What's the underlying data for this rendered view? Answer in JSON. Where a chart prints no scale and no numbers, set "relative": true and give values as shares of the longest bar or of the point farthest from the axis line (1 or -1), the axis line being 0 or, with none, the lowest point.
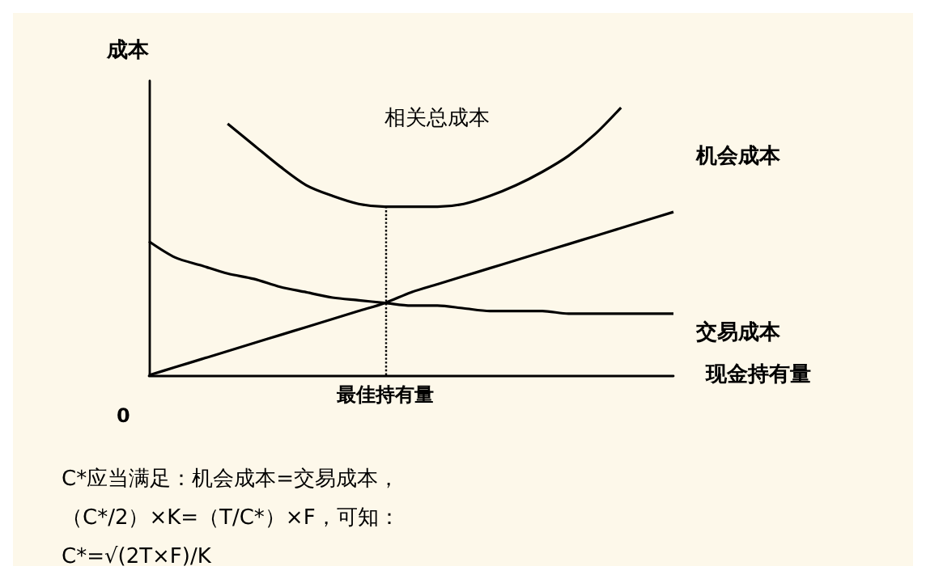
{
  "chart_data": {
    "type": "line",
    "relative": true,
    "ylabel": "成本",
    "xlabel": "现金持有量",
    "categories": [
      null,
      null,
      null,
      null,
      null,
      null,
      null,
      null,
      null,
      null,
      null,
      null,
      null,
      null,
      null,
      null,
      null,
      null,
      null,
      null,
      null
    ],
    "series": [
      {
        "name": "相关总成本",
        "color": "#000000",
        "values": [
          null,
          null,
          null,
          0.94,
          0.86,
          0.78,
          0.71,
          0.67,
          0.64,
          0.63,
          0.63,
          0.63,
          0.64,
          0.67,
          0.71,
          0.76,
          0.82,
          0.9,
          1,
          null,
          null
        ]
      },
      {
        "name": "机会成本",
        "color": "#000000",
        "values": [
          0,
          0.03,
          0.06,
          0.09,
          0.12,
          0.15,
          0.18,
          0.21,
          0.24,
          0.27,
          0.31,
          0.34,
          0.37,
          0.4,
          0.43,
          0.46,
          0.49,
          0.52,
          0.55,
          0.58,
          0.61
        ]
      },
      {
        "name": "交易成本",
        "color": "#000000",
        "values": [
          0.5,
          0.44,
          0.41,
          0.38,
          0.36,
          0.33,
          0.31,
          0.29,
          0.28,
          0.27,
          0.26,
          0.26,
          0.25,
          0.24,
          0.24,
          0.24,
          0.23,
          0.23,
          0.23,
          0.23,
          0.23
        ]
      }
    ],
    "annotations": [
      "0",
      "最佳持有量",
      "C*应当满足：机会成本=交易成本，",
      "（C*/2）×K=（T/C*）×F，可知：",
      "C*=√(2T×F)/K"
    ],
    "grid": false,
    "legend": false,
    "marker": "none",
    "line_style": "solid"
  }
}
